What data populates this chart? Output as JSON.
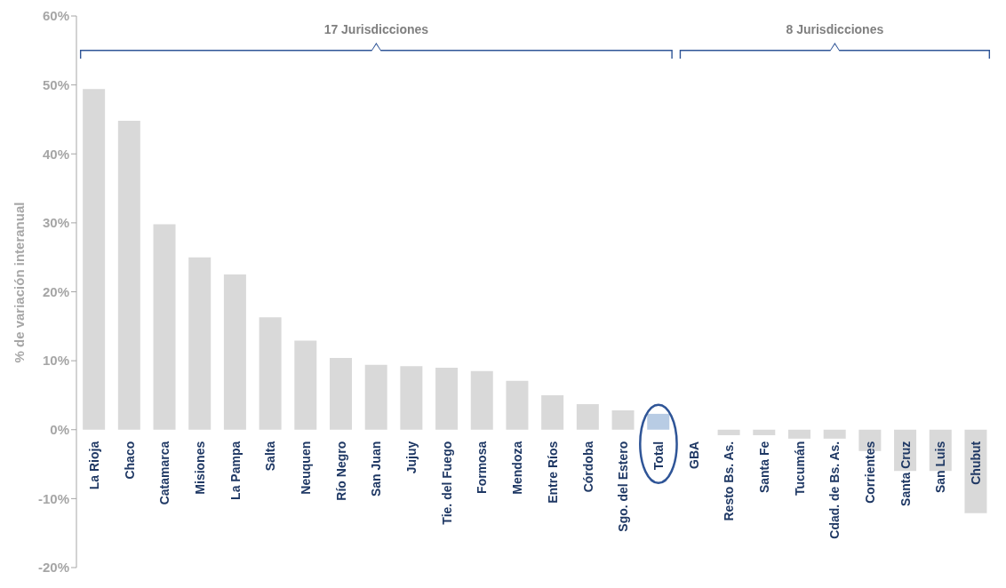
{
  "chart_data": {
    "type": "bar",
    "ylabel": "% de variación interanual",
    "annotations": [
      "17 Jurisdicciones",
      "8 Jurisdicciones"
    ],
    "categories": [
      "La Rioja",
      "Chaco",
      "Catamarca",
      "Misiones",
      "La Pampa",
      "Salta",
      "Neuquen",
      "Río Negro",
      "San Juan",
      "Jujuy",
      "Tie. del Fuego",
      "Formosa",
      "Mendoza",
      "Entre Ríos",
      "Córdoba",
      "Sgo. del Estero",
      "Total",
      "GBA",
      "Resto Bs. As.",
      "Santa Fe",
      "Tucumán",
      "Cdad. de Bs. As.",
      "Corrientes",
      "Santa Cruz",
      "San Luis",
      "Chubut"
    ],
    "values": [
      49.4,
      44.8,
      29.8,
      25.0,
      22.5,
      16.3,
      12.9,
      10.4,
      9.4,
      9.2,
      9.0,
      8.5,
      7.1,
      5.0,
      3.7,
      2.8,
      2.3,
      0,
      -0.8,
      -0.8,
      -1.3,
      -1.3,
      -3.1,
      -6.0,
      -6.0,
      -12.1
    ],
    "colors": [
      "#d9d9d9",
      "#d9d9d9",
      "#d9d9d9",
      "#d9d9d9",
      "#d9d9d9",
      "#d9d9d9",
      "#d9d9d9",
      "#d9d9d9",
      "#d9d9d9",
      "#d9d9d9",
      "#d9d9d9",
      "#d9d9d9",
      "#d9d9d9",
      "#d9d9d9",
      "#d9d9d9",
      "#d9d9d9",
      "#b8cce4",
      "#d9d9d9",
      "#d9d9d9",
      "#d9d9d9",
      "#d9d9d9",
      "#d9d9d9",
      "#d9d9d9",
      "#d9d9d9",
      "#d9d9d9",
      "#d9d9d9"
    ],
    "ylim": [
      -20,
      60
    ],
    "yticks": [
      {
        "value": -20,
        "label": "-20%"
      },
      {
        "value": -10,
        "label": "-10%"
      },
      {
        "value": 0,
        "label": "0%"
      },
      {
        "value": 10,
        "label": "10%"
      },
      {
        "value": 20,
        "label": "20%"
      },
      {
        "value": 30,
        "label": "30%"
      },
      {
        "value": 40,
        "label": "40%"
      },
      {
        "value": 50,
        "label": "50%"
      },
      {
        "value": 60,
        "label": "60%"
      }
    ],
    "grid": false,
    "legend": false
  }
}
